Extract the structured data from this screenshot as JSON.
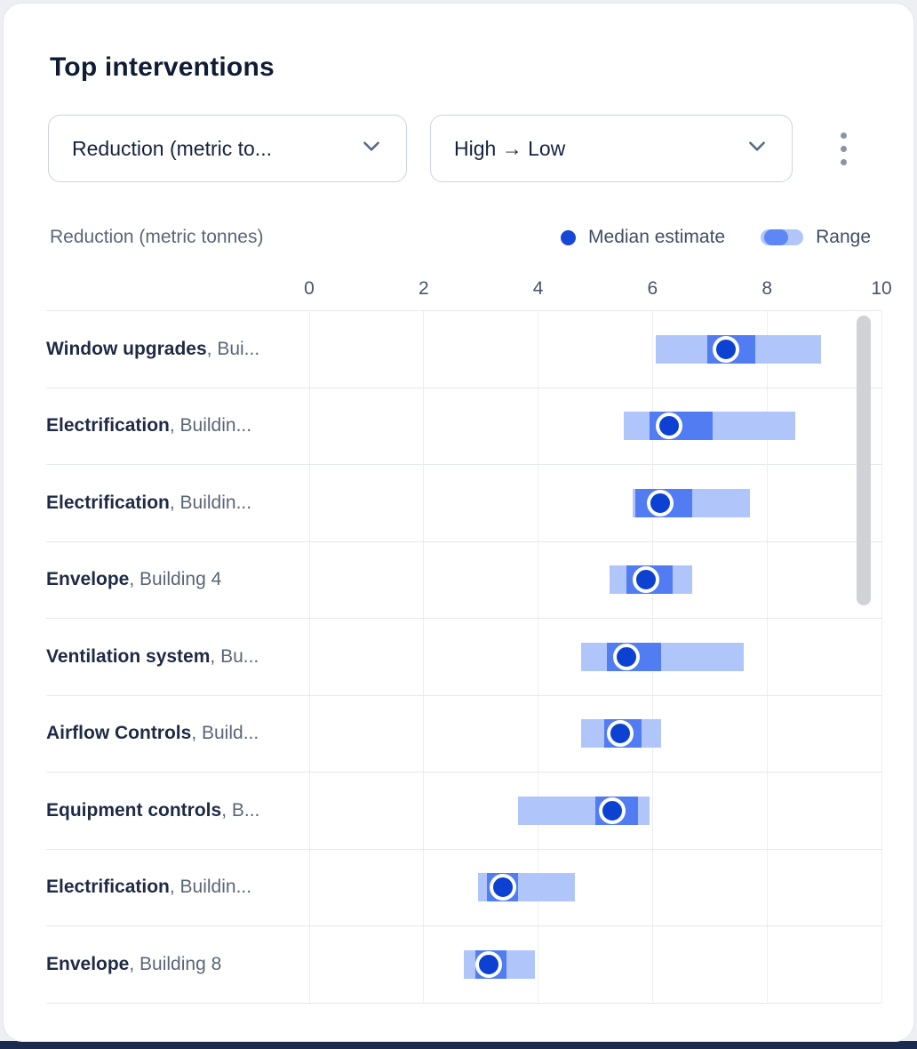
{
  "header": {
    "title": "Top interventions"
  },
  "controls": {
    "metric_dropdown": {
      "value": "Reduction (metric to..."
    },
    "sort_dropdown": {
      "value": "High → Low"
    },
    "kebab_icon": "more-vertical-icon"
  },
  "legend": {
    "axis_caption": "Reduction (metric tonnes)",
    "median_label": "Median estimate",
    "range_label": "Range"
  },
  "colors": {
    "range_fill": "#b0c6fb",
    "inner_fill": "#527df2",
    "median_dot": "#0d41d1",
    "grid": "#ebedf3",
    "accent_dark_strip": "#1c2a4e"
  },
  "chart_data": {
    "type": "bar",
    "variant": "horizontal-range-bars",
    "title": "Top interventions",
    "xlabel": "Reduction (metric tonnes)",
    "xlim": [
      0,
      10
    ],
    "ticks": [
      0,
      2,
      4,
      6,
      8,
      10
    ],
    "grid": true,
    "legend_position": "top-right",
    "rows": [
      {
        "name": "Window upgrades",
        "location": ", Bui...",
        "range": [
          6.05,
          8.95
        ],
        "inner": [
          6.95,
          7.8
        ],
        "median": 7.35
      },
      {
        "name": "Electrification",
        "location": ", Buildin...",
        "range": [
          5.5,
          8.5
        ],
        "inner": [
          5.95,
          7.05
        ],
        "median": 6.35
      },
      {
        "name": "Electrification",
        "location": ", Buildin...",
        "range": [
          5.65,
          7.7
        ],
        "inner": [
          5.7,
          6.7
        ],
        "median": 6.2
      },
      {
        "name": "Envelope",
        "location": ", Building 4",
        "range": [
          5.25,
          6.7
        ],
        "inner": [
          5.55,
          6.35
        ],
        "median": 5.95
      },
      {
        "name": "Ventilation system",
        "location": ", Bu...",
        "range": [
          4.75,
          7.6
        ],
        "inner": [
          5.2,
          6.15
        ],
        "median": 5.6
      },
      {
        "name": "Airflow Controls",
        "location": ", Build...",
        "range": [
          4.75,
          6.15
        ],
        "inner": [
          5.15,
          5.8
        ],
        "median": 5.5
      },
      {
        "name": "Equipment controls",
        "location": ", B...",
        "range": [
          3.65,
          5.95
        ],
        "inner": [
          5.0,
          5.75
        ],
        "median": 5.35
      },
      {
        "name": "Electrification",
        "location": ", Buildin...",
        "range": [
          2.95,
          4.65
        ],
        "inner": [
          3.1,
          3.65
        ],
        "median": 3.45
      },
      {
        "name": "Envelope",
        "location": ", Building 8",
        "range": [
          2.7,
          3.95
        ],
        "inner": [
          2.9,
          3.45
        ],
        "median": 3.2
      }
    ]
  }
}
